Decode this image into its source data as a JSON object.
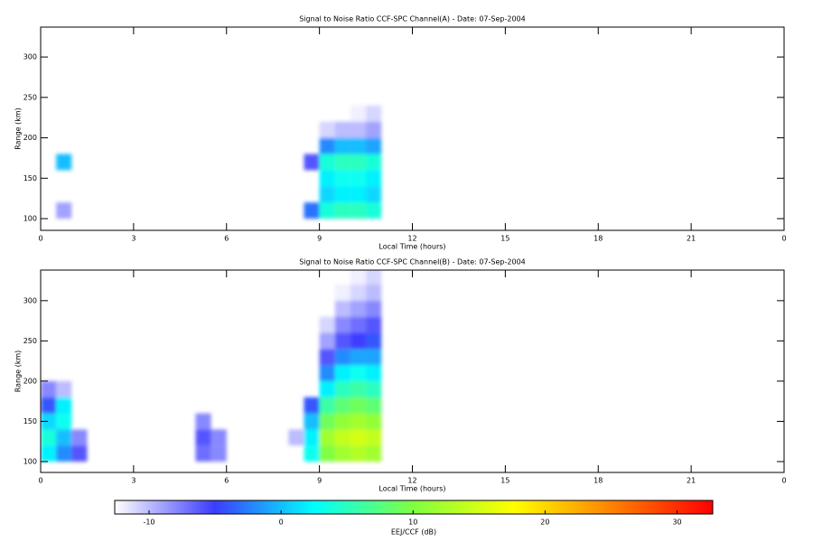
{
  "chart_data": [
    {
      "type": "heatmap",
      "title": "Signal to Noise Ratio CCF-SPC Channel(A) - Date: 07-Sep-2004",
      "x_label": "Local Time (hours)",
      "y_label": "Range (km)",
      "xlim": [
        0,
        24
      ],
      "xticks": [
        0,
        3,
        6,
        9,
        12,
        15,
        18,
        21,
        {
          "value": 24,
          "label": "0"
        }
      ],
      "ylim": [
        85.5,
        337
      ],
      "yticks": [
        100,
        150,
        200,
        250,
        300
      ],
      "x_bins": [
        0,
        0.5,
        1,
        1.5,
        2,
        2.5,
        3,
        3.5,
        4,
        4.5,
        5,
        5.5,
        6,
        6.5,
        7,
        7.5,
        8,
        8.5,
        9,
        9.5,
        10,
        10.5,
        11
      ],
      "y_bins": [
        100,
        120,
        140,
        160,
        180,
        200,
        220,
        240,
        260,
        280,
        300,
        320,
        340
      ],
      "z": [
        [
          null,
          -9,
          null,
          null,
          null,
          null,
          null,
          null,
          null,
          null,
          null,
          null,
          null,
          null,
          null,
          null,
          null,
          -3,
          4,
          5,
          5,
          4
        ],
        [
          null,
          null,
          null,
          null,
          null,
          null,
          null,
          null,
          null,
          null,
          null,
          null,
          null,
          null,
          null,
          null,
          null,
          null,
          1,
          2,
          2,
          1
        ],
        [
          null,
          null,
          null,
          null,
          null,
          null,
          null,
          null,
          null,
          null,
          null,
          null,
          null,
          null,
          null,
          null,
          null,
          null,
          2,
          3,
          3,
          2
        ],
        [
          null,
          0,
          null,
          null,
          null,
          null,
          null,
          null,
          null,
          null,
          null,
          null,
          null,
          null,
          null,
          null,
          null,
          -6,
          4,
          5,
          5,
          4
        ],
        [
          null,
          null,
          null,
          null,
          null,
          null,
          null,
          null,
          null,
          null,
          null,
          null,
          null,
          null,
          null,
          null,
          null,
          null,
          -2,
          0,
          0,
          -1
        ],
        [
          null,
          null,
          null,
          null,
          null,
          null,
          null,
          null,
          null,
          null,
          null,
          null,
          null,
          null,
          null,
          null,
          null,
          null,
          -11,
          -10,
          -10,
          -9
        ],
        [
          null,
          null,
          null,
          null,
          null,
          null,
          null,
          null,
          null,
          null,
          null,
          null,
          null,
          null,
          null,
          null,
          null,
          null,
          null,
          null,
          -12,
          -11
        ],
        [
          null,
          null,
          null,
          null,
          null,
          null,
          null,
          null,
          null,
          null,
          null,
          null,
          null,
          null,
          null,
          null,
          null,
          null,
          null,
          null,
          null,
          null
        ],
        [
          null,
          null,
          null,
          null,
          null,
          null,
          null,
          null,
          null,
          null,
          null,
          null,
          null,
          null,
          null,
          null,
          null,
          null,
          null,
          null,
          null,
          null
        ],
        [
          null,
          null,
          null,
          null,
          null,
          null,
          null,
          null,
          null,
          null,
          null,
          null,
          null,
          null,
          null,
          null,
          null,
          null,
          null,
          null,
          null,
          null
        ],
        [
          null,
          null,
          null,
          null,
          null,
          null,
          null,
          null,
          null,
          null,
          null,
          null,
          null,
          null,
          null,
          null,
          null,
          null,
          null,
          null,
          null,
          null
        ],
        [
          null,
          null,
          null,
          null,
          null,
          null,
          null,
          null,
          null,
          null,
          null,
          null,
          null,
          null,
          null,
          null,
          null,
          null,
          null,
          null,
          null,
          null
        ]
      ]
    },
    {
      "type": "heatmap",
      "title": "Signal to Noise Ratio CCF-SPC Channel(B) - Date: 07-Sep-2004",
      "x_label": "Local Time (hours)",
      "y_label": "Range (km)",
      "xlim": [
        0,
        24
      ],
      "xticks": [
        0,
        3,
        6,
        9,
        12,
        15,
        18,
        21,
        {
          "value": 24,
          "label": "0"
        }
      ],
      "ylim": [
        86.5,
        338
      ],
      "yticks": [
        100,
        150,
        200,
        250,
        300
      ],
      "x_bins": [
        0,
        0.5,
        1,
        1.5,
        2,
        2.5,
        3,
        3.5,
        4,
        4.5,
        5,
        5.5,
        6,
        6.5,
        7,
        7.5,
        8,
        8.5,
        9,
        9.5,
        10,
        10.5,
        11
      ],
      "y_bins": [
        100,
        120,
        140,
        160,
        180,
        200,
        220,
        240,
        260,
        280,
        300,
        320,
        340
      ],
      "z": [
        [
          2,
          -2,
          -6,
          null,
          null,
          null,
          null,
          null,
          null,
          null,
          -7,
          -8,
          null,
          null,
          null,
          null,
          null,
          3,
          10,
          12,
          13,
          12
        ],
        [
          4,
          0,
          -8,
          null,
          null,
          null,
          null,
          null,
          null,
          null,
          -6,
          -8,
          null,
          null,
          null,
          null,
          -10,
          2,
          12,
          14,
          15,
          14
        ],
        [
          1,
          3,
          null,
          null,
          null,
          null,
          null,
          null,
          null,
          null,
          -8,
          null,
          null,
          null,
          null,
          null,
          null,
          0,
          9,
          11,
          12,
          11
        ],
        [
          -4,
          2,
          null,
          null,
          null,
          null,
          null,
          null,
          null,
          null,
          null,
          null,
          null,
          null,
          null,
          null,
          null,
          -4,
          6,
          8,
          9,
          8
        ],
        [
          -8,
          -10,
          null,
          null,
          null,
          null,
          null,
          null,
          null,
          null,
          null,
          null,
          null,
          null,
          null,
          null,
          null,
          null,
          2,
          5,
          6,
          5
        ],
        [
          null,
          null,
          null,
          null,
          null,
          null,
          null,
          null,
          null,
          null,
          null,
          null,
          null,
          null,
          null,
          null,
          null,
          null,
          -2,
          2,
          3,
          2
        ],
        [
          null,
          null,
          null,
          null,
          null,
          null,
          null,
          null,
          null,
          null,
          null,
          null,
          null,
          null,
          null,
          null,
          null,
          null,
          -6,
          -2,
          -1,
          -1
        ],
        [
          null,
          null,
          null,
          null,
          null,
          null,
          null,
          null,
          null,
          null,
          null,
          null,
          null,
          null,
          null,
          null,
          null,
          null,
          -9,
          -6,
          -5,
          -4
        ],
        [
          null,
          null,
          null,
          null,
          null,
          null,
          null,
          null,
          null,
          null,
          null,
          null,
          null,
          null,
          null,
          null,
          null,
          null,
          -11,
          -8,
          -7,
          -6
        ],
        [
          null,
          null,
          null,
          null,
          null,
          null,
          null,
          null,
          null,
          null,
          null,
          null,
          null,
          null,
          null,
          null,
          null,
          null,
          null,
          -10,
          -9,
          -8
        ],
        [
          null,
          null,
          null,
          null,
          null,
          null,
          null,
          null,
          null,
          null,
          null,
          null,
          null,
          null,
          null,
          null,
          null,
          null,
          null,
          -12,
          -11,
          -10
        ],
        [
          null,
          null,
          null,
          null,
          null,
          null,
          null,
          null,
          null,
          null,
          null,
          null,
          null,
          null,
          null,
          null,
          null,
          null,
          null,
          null,
          -12,
          -11
        ]
      ]
    }
  ],
  "colorbar": {
    "label": "EEJ/CCF (dB)",
    "zlim": [
      -12.6,
      32.7
    ],
    "ticks": [
      -10,
      0,
      10,
      20,
      30
    ],
    "colors": [
      "#ffffff",
      "#3c3cff",
      "#00ffff",
      "#80ff40",
      "#ffff00",
      "#ff8000",
      "#ff0000"
    ]
  }
}
